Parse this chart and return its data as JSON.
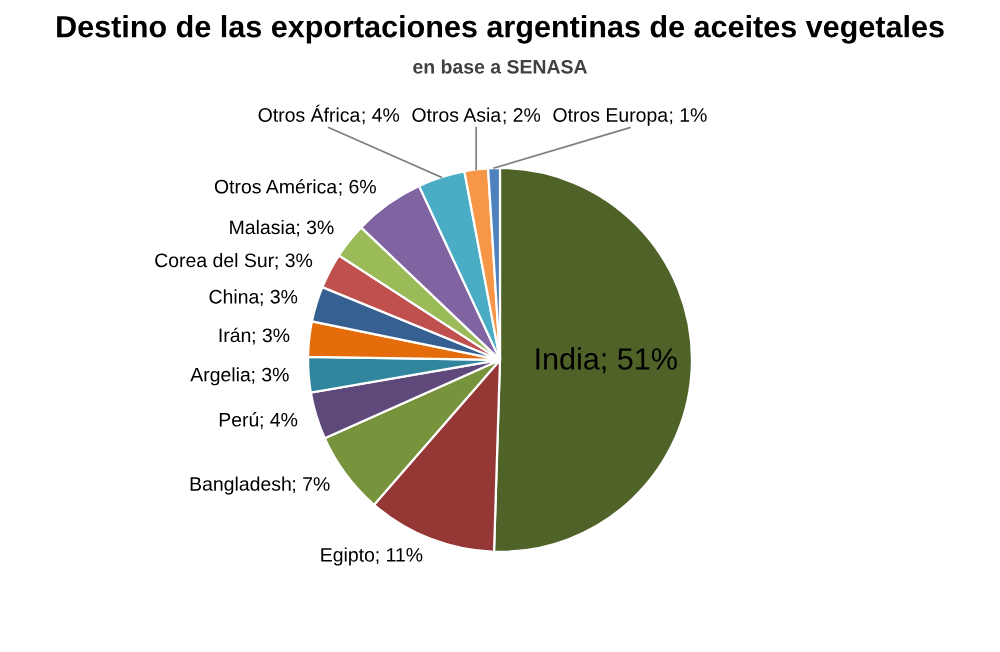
{
  "chart_data": {
    "type": "pie",
    "title": "Destino de las exportaciones argentinas de aceites vegetales",
    "subtitle": "en base a SENASA",
    "categories": [
      "India",
      "Egipto",
      "Bangladesh",
      "Perú",
      "Argelia",
      "Irán",
      "China",
      "Corea del Sur",
      "Malasia",
      "Otros América",
      "Otros África",
      "Otros Asia",
      "Otros Europa"
    ],
    "values": [
      51,
      11,
      7,
      4,
      3,
      3,
      3,
      3,
      3,
      6,
      4,
      2,
      1
    ],
    "colors": [
      "#4f6228",
      "#953735",
      "#77933c",
      "#5f497a",
      "#31859c",
      "#e46c0a",
      "#376092",
      "#c0504d",
      "#9bbb59",
      "#8064a2",
      "#4bacc6",
      "#f79646",
      "#4f81bd"
    ],
    "value_labels": [
      "; 51%",
      "; 11%",
      "; 7%",
      "; 4%",
      "; 3%",
      "; 3%",
      "; 3%",
      "; 3%",
      "; 3%",
      "; 6%",
      "; 4%",
      "; 2%",
      "; 1%"
    ],
    "legend": false
  }
}
